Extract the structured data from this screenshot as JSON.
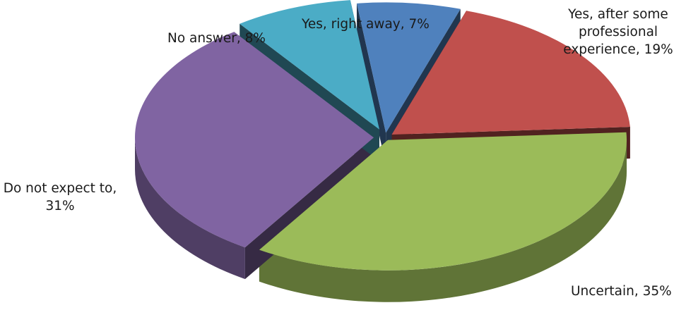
{
  "chart_data": {
    "type": "pie",
    "style": "3d-exploded",
    "categories": [
      "Yes, right away",
      "Yes, after some professional experience",
      "Uncertain",
      "Do not expect to",
      "No answer"
    ],
    "values": [
      7,
      19,
      35,
      31,
      8
    ],
    "unit": "%",
    "colors": [
      "#4f81bd",
      "#c0504d",
      "#9bbb59",
      "#8064a2",
      "#4bacc6"
    ],
    "data_labels": [
      [
        "Yes, right away, 7%"
      ],
      [
        "Yes, after some",
        "professional",
        "experience, 19%"
      ],
      [
        "Uncertain, 35%"
      ],
      [
        "Do not expect to,",
        "31%"
      ],
      [
        "No answer, 8%"
      ]
    ],
    "legend": "none",
    "title": ""
  }
}
